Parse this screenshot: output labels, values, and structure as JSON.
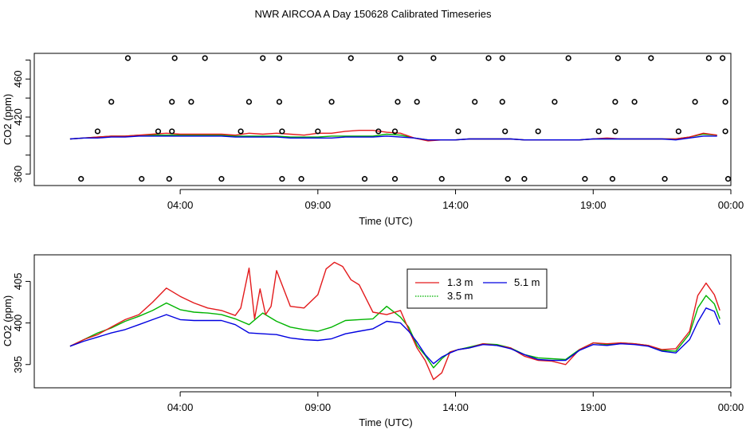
{
  "title": "NWR AIRCOA A  Day 150628  Calibrated Timeseries",
  "colors": {
    "s13": "#e31a1c",
    "s35": "#00b400",
    "s51": "#0000e0",
    "flags": "#000000"
  },
  "chart_data": [
    {
      "type": "line",
      "panel": "top",
      "xlabel": "Time (UTC)",
      "ylabel": "CO2 (ppm)",
      "xlim": [
        -1.3,
        24.0
      ],
      "ylim": [
        348,
        487
      ],
      "x_ticks": [
        4,
        9,
        14,
        19,
        24
      ],
      "x_tick_labels": [
        "04:00",
        "09:00",
        "14:00",
        "19:00",
        "00:00"
      ],
      "y_ticks": [
        360,
        380,
        400,
        420,
        440,
        460,
        480
      ],
      "y_tick_labels": [
        "360",
        "420",
        "460"
      ],
      "grid": false,
      "series": [
        {
          "key": "s13",
          "x": [
            0,
            0.5,
            1,
            1.5,
            2,
            2.5,
            3,
            3.5,
            4,
            4.5,
            5,
            5.5,
            6,
            6.5,
            7,
            7.5,
            8,
            8.5,
            9,
            9.5,
            10,
            10.5,
            11,
            11.5,
            12,
            12.5,
            13,
            13.5,
            14,
            14.5,
            15,
            15.5,
            16,
            16.5,
            17,
            17.5,
            18,
            18.5,
            19,
            19.5,
            20,
            20.5,
            21,
            21.5,
            22,
            22.5,
            23,
            23.5
          ],
          "y": [
            397,
            398,
            399,
            400,
            400,
            401,
            402,
            403,
            402,
            402,
            402,
            402,
            401,
            403,
            402,
            403,
            402,
            401,
            403,
            403,
            405,
            406,
            406,
            404,
            403,
            398,
            395,
            396,
            396,
            397,
            397,
            397,
            397,
            396,
            396,
            396,
            396,
            396,
            397,
            398,
            397,
            397,
            397,
            397,
            397,
            399,
            403,
            401
          ]
        },
        {
          "key": "s35",
          "x": [
            0,
            0.5,
            1,
            1.5,
            2,
            2.5,
            3,
            3.5,
            4,
            4.5,
            5,
            5.5,
            6,
            6.5,
            7,
            7.5,
            8,
            8.5,
            9,
            9.5,
            10,
            10.5,
            11,
            11.5,
            12,
            12.5,
            13,
            13.5,
            14,
            14.5,
            15,
            15.5,
            16,
            16.5,
            17,
            17.5,
            18,
            18.5,
            19,
            19.5,
            20,
            20.5,
            21,
            21.5,
            22,
            22.5,
            23,
            23.5
          ],
          "y": [
            397,
            398,
            399,
            400,
            400,
            401,
            401,
            401,
            401,
            401,
            401,
            401,
            400,
            400,
            400,
            400,
            399,
            399,
            399,
            400,
            400,
            400,
            400,
            402,
            401,
            398,
            396,
            396,
            396,
            397,
            397,
            397,
            397,
            396,
            396,
            396,
            396,
            396,
            397,
            397,
            397,
            397,
            397,
            397,
            397,
            399,
            402,
            401
          ]
        },
        {
          "key": "s51",
          "x": [
            0,
            0.5,
            1,
            1.5,
            2,
            2.5,
            3,
            3.5,
            4,
            4.5,
            5,
            5.5,
            6,
            6.5,
            7,
            7.5,
            8,
            8.5,
            9,
            9.5,
            10,
            10.5,
            11,
            11.5,
            12,
            12.5,
            13,
            13.5,
            14,
            14.5,
            15,
            15.5,
            16,
            16.5,
            17,
            17.5,
            18,
            18.5,
            19,
            19.5,
            20,
            20.5,
            21,
            21.5,
            22,
            22.5,
            23,
            23.5
          ],
          "y": [
            397,
            398,
            398,
            399,
            399,
            400,
            400,
            400,
            400,
            400,
            400,
            400,
            399,
            399,
            399,
            399,
            398,
            398,
            398,
            398,
            399,
            399,
            399,
            400,
            399,
            398,
            396,
            396,
            396,
            397,
            397,
            397,
            397,
            396,
            396,
            396,
            396,
            396,
            397,
            397,
            397,
            397,
            397,
            397,
            396,
            398,
            400,
            400
          ]
        }
      ],
      "flags": [
        {
          "x": 0.4,
          "y": 355
        },
        {
          "x": 1.0,
          "y": 405
        },
        {
          "x": 1.5,
          "y": 436
        },
        {
          "x": 2.1,
          "y": 482
        },
        {
          "x": 2.6,
          "y": 355
        },
        {
          "x": 3.2,
          "y": 405
        },
        {
          "x": 3.6,
          "y": 355
        },
        {
          "x": 3.7,
          "y": 405
        },
        {
          "x": 3.7,
          "y": 436
        },
        {
          "x": 3.8,
          "y": 482
        },
        {
          "x": 4.4,
          "y": 436
        },
        {
          "x": 4.9,
          "y": 482
        },
        {
          "x": 5.5,
          "y": 355
        },
        {
          "x": 6.2,
          "y": 405
        },
        {
          "x": 6.5,
          "y": 436
        },
        {
          "x": 7.0,
          "y": 482
        },
        {
          "x": 7.6,
          "y": 482
        },
        {
          "x": 7.6,
          "y": 436
        },
        {
          "x": 7.7,
          "y": 355
        },
        {
          "x": 7.7,
          "y": 405
        },
        {
          "x": 8.4,
          "y": 355
        },
        {
          "x": 9.0,
          "y": 405
        },
        {
          "x": 9.5,
          "y": 436
        },
        {
          "x": 10.2,
          "y": 482
        },
        {
          "x": 10.7,
          "y": 355
        },
        {
          "x": 11.2,
          "y": 405
        },
        {
          "x": 11.8,
          "y": 405
        },
        {
          "x": 11.8,
          "y": 355
        },
        {
          "x": 11.9,
          "y": 436
        },
        {
          "x": 12.0,
          "y": 482
        },
        {
          "x": 12.6,
          "y": 436
        },
        {
          "x": 13.2,
          "y": 482
        },
        {
          "x": 13.5,
          "y": 355
        },
        {
          "x": 14.1,
          "y": 405
        },
        {
          "x": 14.7,
          "y": 436
        },
        {
          "x": 15.2,
          "y": 482
        },
        {
          "x": 15.7,
          "y": 482
        },
        {
          "x": 15.7,
          "y": 436
        },
        {
          "x": 15.8,
          "y": 405
        },
        {
          "x": 15.9,
          "y": 355
        },
        {
          "x": 16.5,
          "y": 355
        },
        {
          "x": 17.0,
          "y": 405
        },
        {
          "x": 17.6,
          "y": 436
        },
        {
          "x": 18.1,
          "y": 482
        },
        {
          "x": 18.7,
          "y": 355
        },
        {
          "x": 19.2,
          "y": 405
        },
        {
          "x": 19.7,
          "y": 355
        },
        {
          "x": 19.8,
          "y": 405
        },
        {
          "x": 19.8,
          "y": 436
        },
        {
          "x": 19.9,
          "y": 482
        },
        {
          "x": 20.5,
          "y": 436
        },
        {
          "x": 21.1,
          "y": 482
        },
        {
          "x": 21.6,
          "y": 355
        },
        {
          "x": 22.1,
          "y": 405
        },
        {
          "x": 22.7,
          "y": 436
        },
        {
          "x": 23.2,
          "y": 482
        },
        {
          "x": 23.7,
          "y": 482
        },
        {
          "x": 23.8,
          "y": 436
        },
        {
          "x": 23.8,
          "y": 405
        },
        {
          "x": 23.9,
          "y": 355
        }
      ]
    },
    {
      "type": "line",
      "panel": "bottom",
      "xlabel": "Time (UTC)",
      "ylabel": "CO2 (ppm)",
      "xlim": [
        -1.3,
        24.0
      ],
      "ylim": [
        392.2,
        408.2
      ],
      "x_ticks": [
        4,
        9,
        14,
        19,
        24
      ],
      "x_tick_labels": [
        "04:00",
        "09:00",
        "14:00",
        "19:00",
        "00:00"
      ],
      "y_ticks": [
        395,
        400,
        405
      ],
      "y_tick_labels": [
        "395",
        "400",
        "405"
      ],
      "grid": false,
      "legend": {
        "placement": "top-center",
        "entries": [
          {
            "key": "s13",
            "label": "1.3 m"
          },
          {
            "key": "s51",
            "label": "5.1 m"
          },
          {
            "key": "s35",
            "label": "3.5 m"
          }
        ]
      },
      "series": [
        {
          "key": "s13",
          "name": "1.3 m",
          "x": [
            0,
            0.5,
            1,
            1.5,
            2,
            2.5,
            3,
            3.5,
            4,
            4.5,
            5,
            5.5,
            6,
            6.2,
            6.5,
            6.7,
            6.9,
            7.1,
            7.3,
            7.5,
            8,
            8.5,
            9,
            9.3,
            9.6,
            9.9,
            10.2,
            10.5,
            11,
            11.5,
            12,
            12.3,
            12.6,
            12.9,
            13.2,
            13.5,
            13.8,
            14.1,
            14.5,
            15,
            15.5,
            16,
            16.5,
            17,
            17.5,
            18,
            18.5,
            19,
            19.5,
            20,
            20.5,
            21,
            21.5,
            22,
            22.5,
            22.8,
            23.1,
            23.4,
            23.6
          ],
          "y": [
            397.2,
            398.0,
            398.6,
            399.5,
            400.4,
            401.0,
            402.5,
            404.2,
            403.2,
            402.4,
            401.8,
            401.5,
            400.9,
            401.8,
            406.6,
            400.5,
            404.1,
            401.0,
            402.0,
            406.3,
            402.0,
            401.8,
            403.4,
            406.5,
            407.3,
            406.8,
            405.2,
            404.6,
            401.3,
            401.0,
            401.5,
            399.2,
            397.0,
            395.5,
            393.2,
            394.0,
            396.5,
            396.8,
            397.0,
            397.5,
            397.3,
            397.0,
            396.0,
            395.5,
            395.4,
            395.0,
            396.8,
            397.6,
            397.5,
            397.6,
            397.5,
            397.3,
            396.8,
            396.9,
            399.0,
            403.3,
            404.8,
            403.4,
            401.5
          ]
        },
        {
          "key": "s35",
          "name": "3.5 m",
          "x": [
            0,
            0.5,
            1,
            1.5,
            2,
            2.5,
            3,
            3.5,
            4,
            4.5,
            5,
            5.5,
            6,
            6.5,
            7,
            7.5,
            8,
            8.5,
            9,
            9.5,
            10,
            10.5,
            11,
            11.5,
            12,
            12.3,
            12.6,
            12.9,
            13.2,
            13.5,
            13.8,
            14.1,
            14.5,
            15,
            15.5,
            16,
            16.5,
            17,
            17.5,
            18,
            18.5,
            19,
            19.5,
            20,
            20.5,
            21,
            21.5,
            22,
            22.5,
            22.8,
            23.1,
            23.4,
            23.6
          ],
          "y": [
            397.2,
            398.0,
            398.8,
            399.4,
            400.2,
            400.8,
            401.5,
            402.4,
            401.6,
            401.3,
            401.2,
            401.0,
            400.5,
            399.8,
            401.2,
            400.2,
            399.5,
            399.2,
            399.0,
            399.5,
            400.3,
            400.4,
            400.5,
            402.0,
            400.7,
            399.5,
            397.3,
            396.1,
            394.6,
            395.7,
            396.5,
            396.8,
            397.1,
            397.5,
            397.4,
            397.0,
            396.2,
            395.8,
            395.7,
            395.6,
            396.8,
            397.6,
            397.4,
            397.6,
            397.5,
            397.3,
            396.7,
            396.6,
            398.7,
            401.8,
            403.3,
            402.3,
            400.5
          ]
        },
        {
          "key": "s51",
          "name": "5.1 m",
          "x": [
            0,
            0.5,
            1,
            1.5,
            2,
            2.5,
            3,
            3.5,
            4,
            4.5,
            5,
            5.5,
            6,
            6.5,
            7,
            7.5,
            8,
            8.5,
            9,
            9.5,
            10,
            10.5,
            11,
            11.5,
            12,
            12.3,
            12.6,
            12.9,
            13.2,
            13.5,
            13.8,
            14.1,
            14.5,
            15,
            15.5,
            16,
            16.5,
            17,
            17.5,
            18,
            18.5,
            19,
            19.5,
            20,
            20.5,
            21,
            21.5,
            22,
            22.5,
            22.8,
            23.1,
            23.4,
            23.6
          ],
          "y": [
            397.2,
            397.8,
            398.3,
            398.8,
            399.2,
            399.8,
            400.4,
            401.0,
            400.4,
            400.3,
            400.3,
            400.3,
            399.8,
            398.8,
            398.7,
            398.6,
            398.2,
            398.0,
            397.9,
            398.1,
            398.7,
            399.0,
            399.3,
            400.2,
            400.0,
            399.0,
            397.7,
            396.2,
            395.1,
            395.9,
            396.4,
            396.8,
            397.0,
            397.4,
            397.3,
            396.9,
            396.2,
            395.6,
            395.5,
            395.5,
            396.7,
            397.4,
            397.3,
            397.5,
            397.4,
            397.2,
            396.6,
            396.4,
            398.0,
            400.1,
            401.8,
            401.4,
            399.8
          ]
        }
      ]
    }
  ]
}
